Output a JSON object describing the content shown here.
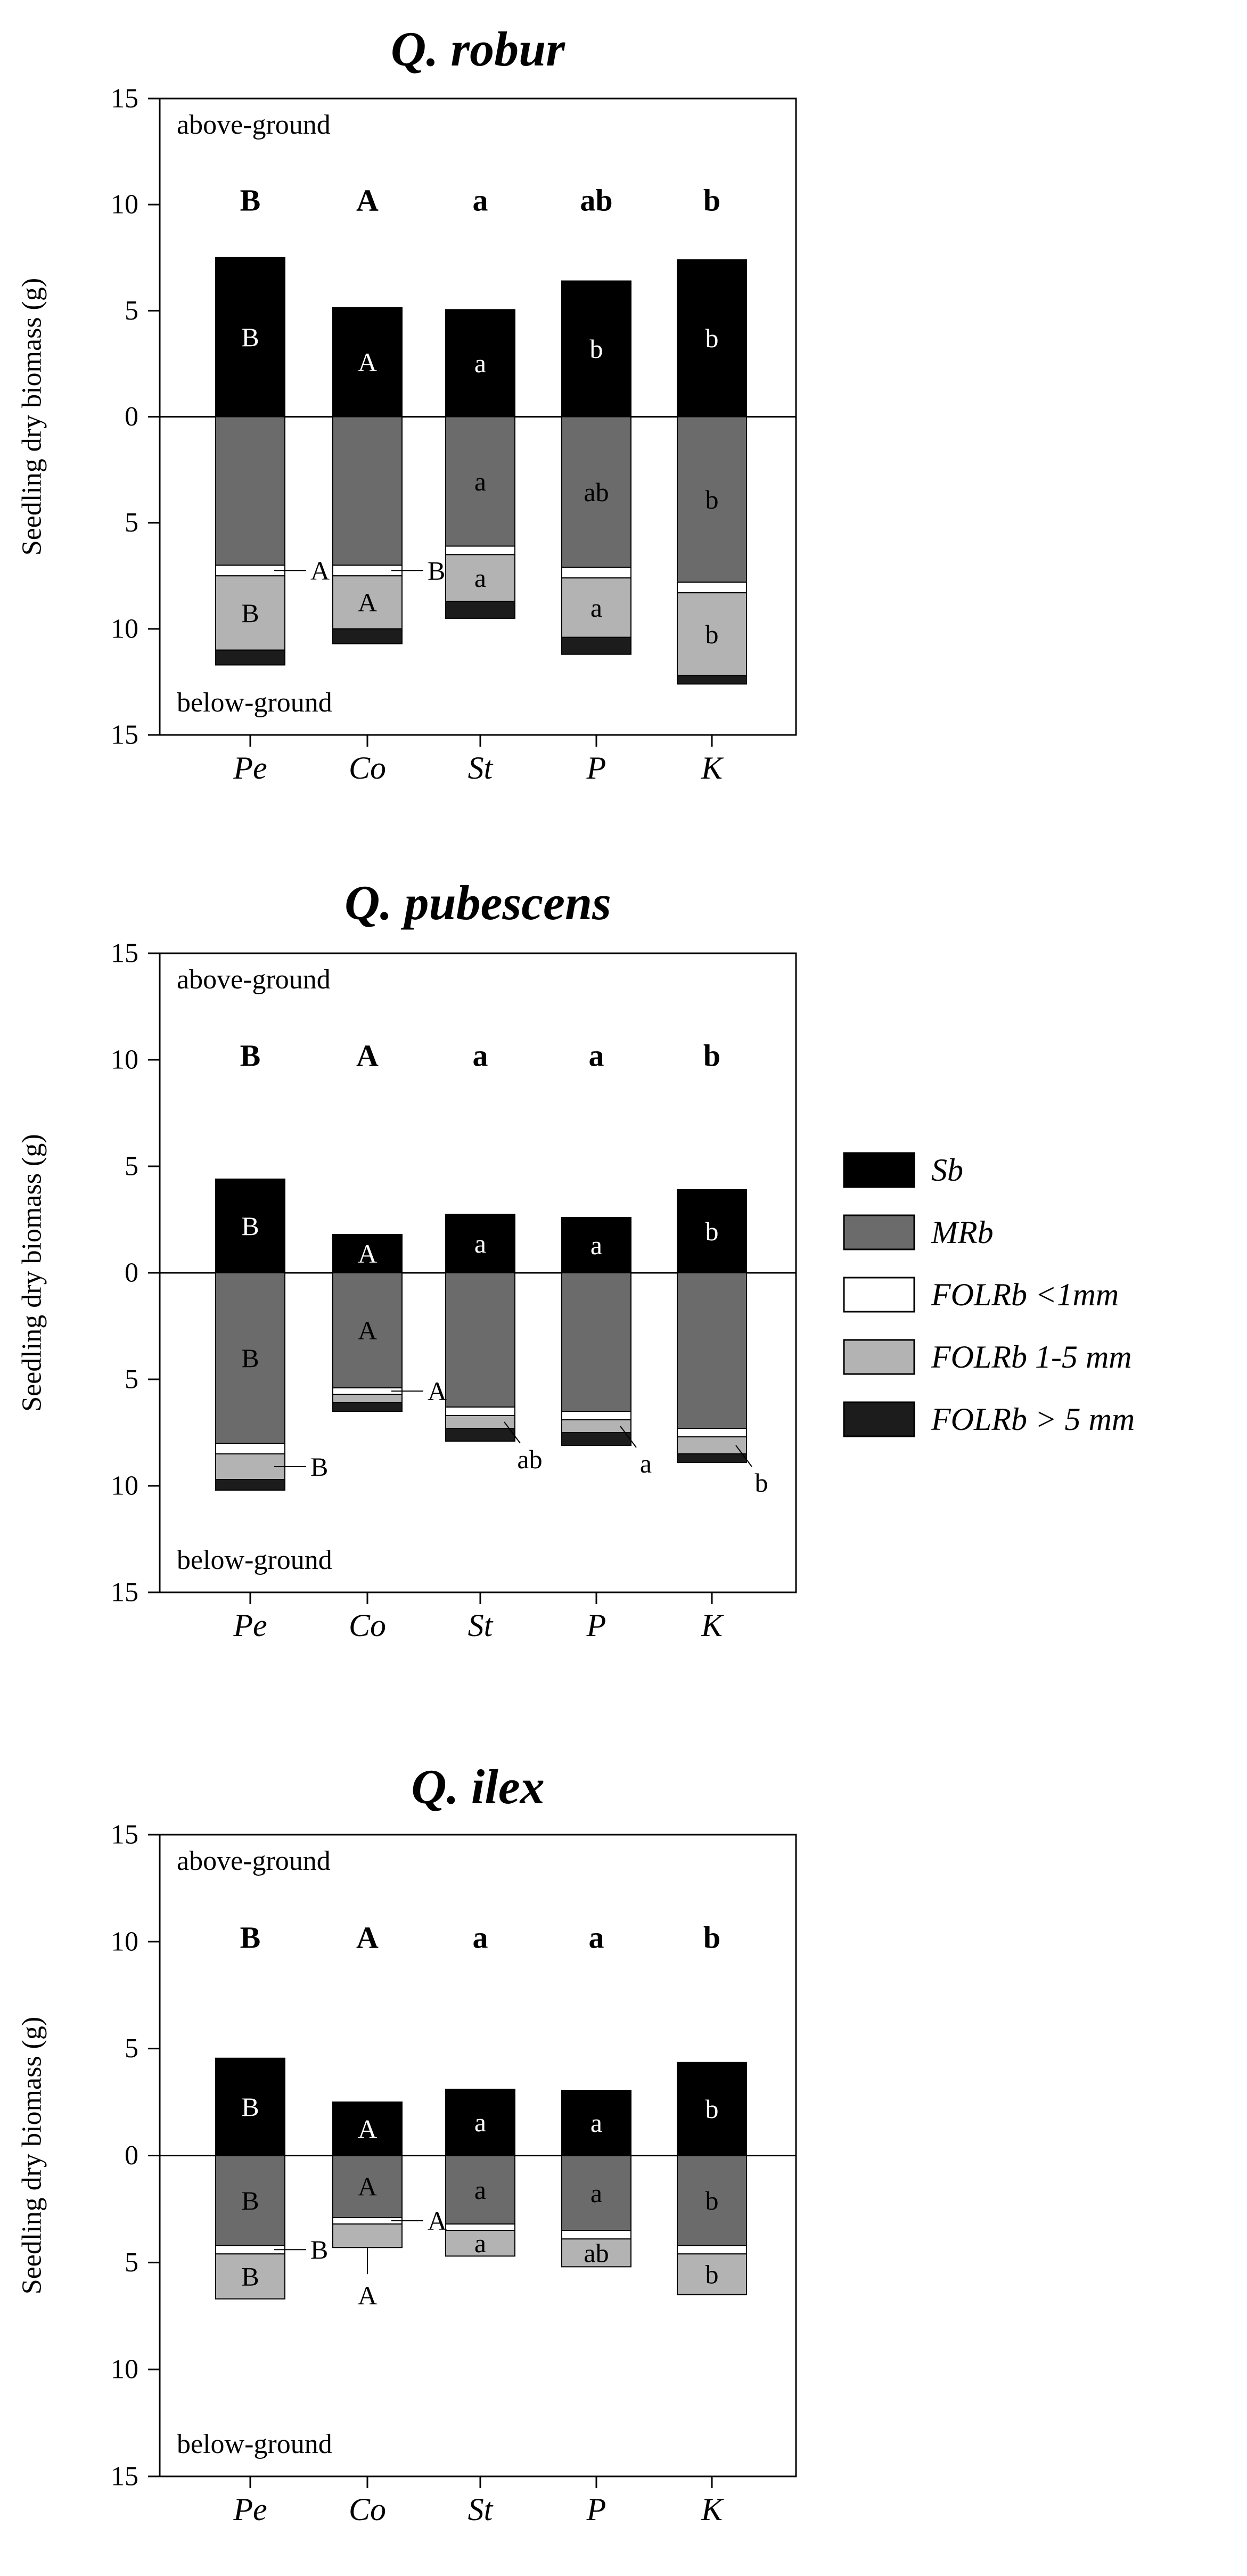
{
  "chart_data": [
    {
      "type": "bar",
      "title": "Q. robur",
      "ylabel": "Seedling dry biomass (g)",
      "ylim": [
        -15,
        15
      ],
      "yticks": [
        "15",
        "10",
        "5",
        "0",
        "5",
        "10",
        "15"
      ],
      "above_label": "above-ground",
      "below_label": "below-ground",
      "categories": [
        "Pe",
        "Co",
        "St",
        "P",
        "K"
      ],
      "above_group_letters": [
        "B",
        "A",
        "a",
        "ab",
        "b"
      ],
      "series": [
        {
          "name": "Sb",
          "values": [
            7.5,
            5.15,
            5.05,
            6.4,
            7.4
          ]
        },
        {
          "name": "MRb",
          "values": [
            7.0,
            7.0,
            6.1,
            7.1,
            7.8
          ]
        },
        {
          "name": "FOLRb <1mm",
          "values": [
            0.5,
            0.5,
            0.4,
            0.5,
            0.5
          ]
        },
        {
          "name": "FOLRb 1-5 mm",
          "values": [
            3.5,
            2.5,
            2.2,
            2.8,
            3.9
          ]
        },
        {
          "name": "FOLRb > 5 mm",
          "values": [
            0.7,
            0.7,
            0.8,
            0.8,
            0.4
          ]
        }
      ],
      "segment_letters": {
        "Sb": [
          "B",
          "A",
          "a",
          "b",
          "b"
        ],
        "MRb": [
          "",
          "",
          "a",
          "ab",
          "b"
        ],
        "FOLRb 1-5 mm": [
          "B",
          "A",
          "a",
          "a",
          "b"
        ]
      },
      "annotations": [
        {
          "category": "Pe",
          "segment": "FOLRb <1mm",
          "text": "A"
        },
        {
          "category": "Co",
          "segment": "FOLRb <1mm",
          "text": "B"
        }
      ]
    },
    {
      "type": "bar",
      "title": "Q. pubescens",
      "ylabel": "Seedling dry biomass (g)",
      "ylim": [
        -15,
        15
      ],
      "yticks": [
        "15",
        "10",
        "5",
        "0",
        "5",
        "10",
        "15"
      ],
      "above_label": "above-ground",
      "below_label": "below-ground",
      "categories": [
        "Pe",
        "Co",
        "St",
        "P",
        "K"
      ],
      "above_group_letters": [
        "B",
        "A",
        "a",
        "a",
        "b"
      ],
      "series": [
        {
          "name": "Sb",
          "values": [
            4.4,
            1.8,
            2.75,
            2.6,
            3.9
          ]
        },
        {
          "name": "MRb",
          "values": [
            8.0,
            5.4,
            6.3,
            6.5,
            7.3
          ]
        },
        {
          "name": "FOLRb <1mm",
          "values": [
            0.5,
            0.3,
            0.4,
            0.4,
            0.4
          ]
        },
        {
          "name": "FOLRb 1-5 mm",
          "values": [
            1.2,
            0.4,
            0.6,
            0.6,
            0.8
          ]
        },
        {
          "name": "FOLRb > 5 mm",
          "values": [
            0.5,
            0.4,
            0.6,
            0.6,
            0.4
          ]
        }
      ],
      "segment_letters": {
        "Sb": [
          "B",
          "A",
          "a",
          "a",
          "b"
        ],
        "MRb": [
          "B",
          "A",
          "",
          "",
          ""
        ],
        "FOLRb 1-5 mm": [
          "",
          "",
          "",
          "",
          ""
        ]
      },
      "annotations": [
        {
          "category": "Pe",
          "segment": "FOLRb 1-5 mm",
          "text": "B"
        },
        {
          "category": "Co",
          "segment": "FOLRb <1mm",
          "text": "A"
        },
        {
          "category": "St",
          "segment": "FOLRb 1-5 mm",
          "text": "ab"
        },
        {
          "category": "P",
          "segment": "FOLRb 1-5 mm",
          "text": "a"
        },
        {
          "category": "K",
          "segment": "FOLRb 1-5 mm",
          "text": "b"
        }
      ]
    },
    {
      "type": "bar",
      "title": "Q. ilex",
      "ylabel": "Seedling dry biomass (g)",
      "ylim": [
        -15,
        15
      ],
      "yticks": [
        "15",
        "10",
        "5",
        "0",
        "5",
        "10",
        "15"
      ],
      "above_label": "above-ground",
      "below_label": "below-ground",
      "categories": [
        "Pe",
        "Co",
        "St",
        "P",
        "K"
      ],
      "above_group_letters": [
        "B",
        "A",
        "a",
        "a",
        "b"
      ],
      "series": [
        {
          "name": "Sb",
          "values": [
            4.55,
            2.5,
            3.1,
            3.05,
            4.35
          ]
        },
        {
          "name": "MRb",
          "values": [
            4.2,
            2.9,
            3.2,
            3.5,
            4.2
          ]
        },
        {
          "name": "FOLRb <1mm",
          "values": [
            0.4,
            0.3,
            0.3,
            0.4,
            0.4
          ]
        },
        {
          "name": "FOLRb 1-5 mm",
          "values": [
            2.1,
            1.1,
            1.2,
            1.3,
            1.9
          ]
        },
        {
          "name": "FOLRb > 5 mm",
          "values": [
            0,
            0,
            0,
            0,
            0
          ]
        }
      ],
      "segment_letters": {
        "Sb": [
          "B",
          "A",
          "a",
          "a",
          "b"
        ],
        "MRb": [
          "B",
          "A",
          "a",
          "a",
          "b"
        ],
        "FOLRb 1-5 mm": [
          "B",
          "",
          "a",
          "ab",
          "b"
        ]
      },
      "annotations": [
        {
          "category": "Pe",
          "segment": "FOLRb <1mm",
          "text": "B"
        },
        {
          "category": "Co",
          "segment": "FOLRb <1mm",
          "text": "A"
        },
        {
          "category": "Co",
          "segment": "FOLRb 1-5 mm",
          "text": "A"
        }
      ]
    }
  ],
  "legend": [
    {
      "name": "Sb",
      "label": "Sb",
      "color": "#000000"
    },
    {
      "name": "MRb",
      "label": "MRb",
      "color": "#6b6b6b"
    },
    {
      "name": "FOLRb <1mm",
      "label": "FOLRb <1mm",
      "color": "#ffffff"
    },
    {
      "name": "FOLRb 1-5 mm",
      "label": "FOLRb 1-5 mm",
      "color": "#b3b3b3"
    },
    {
      "name": "FOLRb > 5 mm",
      "label": "FOLRb > 5 mm",
      "color": "#1c1c1c"
    }
  ]
}
